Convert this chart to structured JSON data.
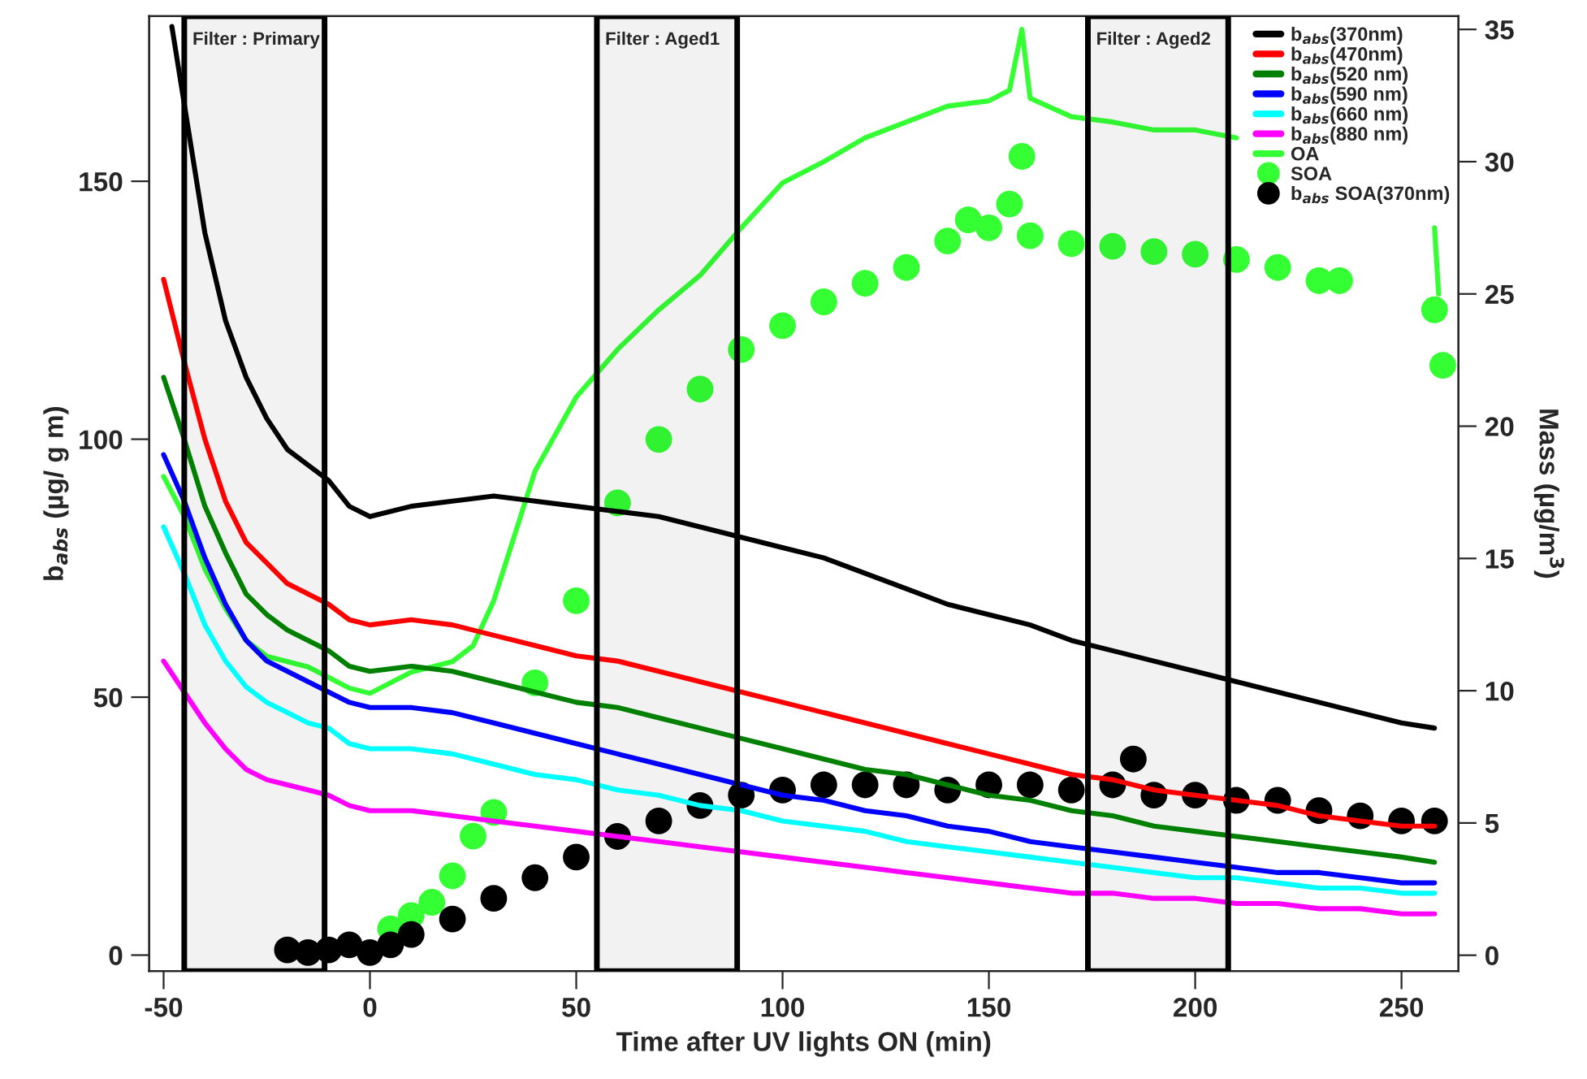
{
  "chart_data": {
    "type": "line",
    "xlabel": "Time after UV lights ON (min)",
    "ylabel": "b$_{abs}$ (µg/ g m)",
    "y2label": "Mass (µg/m$^{3}$)",
    "xlim": [
      -53.5,
      263.8
    ],
    "xticks": [
      -50,
      0,
      50,
      100,
      150,
      200,
      250
    ],
    "ylim": [
      -3.1,
      182
    ],
    "yticks": [
      0,
      50,
      100,
      150
    ],
    "y2lim": [
      -0.6,
      35.5
    ],
    "y2ticks": [
      0,
      5,
      10,
      15,
      20,
      25,
      30,
      35
    ],
    "grid": false,
    "legend": "top right",
    "line_style": "solid",
    "bands": [
      {
        "axis": "x",
        "from": -45,
        "to": -11,
        "label": "Filter : Primary",
        "color": "#000000"
      },
      {
        "axis": "x",
        "from": 55,
        "to": 89,
        "label": "Filter : Aged1",
        "color": "#000000"
      },
      {
        "axis": "x",
        "from": 174,
        "to": 208,
        "label": "Filter : Aged2",
        "color": "#000000"
      }
    ],
    "series": [
      {
        "name": "b$_{abs}$(370nm)",
        "color": "#000000",
        "x": [
          -48,
          -45,
          -40,
          -35,
          -30,
          -25,
          -20,
          -15,
          -10,
          -5,
          0,
          10,
          20,
          30,
          40,
          50,
          60,
          70,
          80,
          90,
          100,
          110,
          120,
          130,
          140,
          150,
          160,
          170,
          180,
          190,
          200,
          210,
          220,
          230,
          240,
          250,
          258
        ],
        "values": [
          180,
          165,
          140,
          123,
          112,
          104,
          98,
          95,
          92,
          87,
          85,
          87,
          88,
          89,
          88,
          87,
          86,
          85,
          83,
          81,
          79,
          77,
          74,
          71,
          68,
          66,
          64,
          61,
          59,
          57,
          55,
          53,
          51,
          49,
          47,
          45,
          44
        ]
      },
      {
        "name": "b$_{abs}$(470nm)",
        "color": "#ff0000",
        "x": [
          -50,
          -45,
          -40,
          -35,
          -30,
          -25,
          -20,
          -15,
          -10,
          -5,
          0,
          10,
          20,
          30,
          40,
          50,
          60,
          70,
          80,
          90,
          100,
          110,
          120,
          130,
          140,
          150,
          160,
          170,
          180,
          190,
          200,
          210,
          220,
          230,
          240,
          250,
          258
        ],
        "values": [
          131,
          115,
          100,
          88,
          80,
          76,
          72,
          70,
          68,
          65,
          64,
          65,
          64,
          62,
          60,
          58,
          57,
          55,
          53,
          51,
          49,
          47,
          45,
          43,
          41,
          39,
          37,
          35,
          34,
          32,
          31,
          30,
          29,
          27,
          26,
          25,
          25
        ]
      },
      {
        "name": "b$_{abs}$(520 nm)",
        "color": "#008000",
        "x": [
          -50,
          -45,
          -40,
          -35,
          -30,
          -25,
          -20,
          -15,
          -10,
          -5,
          0,
          10,
          20,
          30,
          40,
          50,
          60,
          70,
          80,
          90,
          100,
          110,
          120,
          130,
          140,
          150,
          160,
          170,
          180,
          190,
          200,
          210,
          220,
          230,
          240,
          250,
          258
        ],
        "values": [
          112,
          100,
          87,
          78,
          70,
          66,
          63,
          61,
          59,
          56,
          55,
          56,
          55,
          53,
          51,
          49,
          48,
          46,
          44,
          42,
          40,
          38,
          36,
          35,
          33,
          31,
          30,
          28,
          27,
          25,
          24,
          23,
          22,
          21,
          20,
          19,
          18
        ]
      },
      {
        "name": "b$_{abs}$(590 nm)",
        "color": "#0000ff",
        "x": [
          -50,
          -45,
          -40,
          -35,
          -30,
          -25,
          -20,
          -15,
          -10,
          -5,
          0,
          10,
          20,
          30,
          40,
          50,
          60,
          70,
          80,
          90,
          100,
          110,
          120,
          130,
          140,
          150,
          160,
          170,
          180,
          190,
          200,
          210,
          220,
          230,
          240,
          250,
          258
        ],
        "values": [
          97,
          88,
          77,
          68,
          61,
          57,
          55,
          53,
          51,
          49,
          48,
          48,
          47,
          45,
          43,
          41,
          39,
          37,
          35,
          33,
          31,
          30,
          28,
          27,
          25,
          24,
          22,
          21,
          20,
          19,
          18,
          17,
          16,
          16,
          15,
          14,
          14
        ]
      },
      {
        "name": "b$_{abs}$(660 nm)",
        "color": "#00ffff",
        "x": [
          -50,
          -45,
          -40,
          -35,
          -30,
          -25,
          -20,
          -15,
          -10,
          -5,
          0,
          10,
          20,
          30,
          40,
          50,
          60,
          70,
          80,
          90,
          100,
          110,
          120,
          130,
          140,
          150,
          160,
          170,
          180,
          190,
          200,
          210,
          220,
          230,
          240,
          250,
          258
        ],
        "values": [
          83,
          74,
          64,
          57,
          52,
          49,
          47,
          45,
          44,
          41,
          40,
          40,
          39,
          37,
          35,
          34,
          32,
          31,
          29,
          28,
          26,
          25,
          24,
          22,
          21,
          20,
          19,
          18,
          17,
          16,
          15,
          15,
          14,
          13,
          13,
          12,
          12
        ]
      },
      {
        "name": "b$_{abs}$(880 nm)",
        "color": "#ff00ff",
        "x": [
          -50,
          -45,
          -40,
          -35,
          -30,
          -25,
          -20,
          -15,
          -10,
          -5,
          0,
          10,
          20,
          30,
          40,
          50,
          60,
          70,
          80,
          90,
          100,
          110,
          120,
          130,
          140,
          150,
          160,
          170,
          180,
          190,
          200,
          210,
          220,
          230,
          240,
          250,
          258
        ],
        "values": [
          57,
          51,
          45,
          40,
          36,
          34,
          33,
          32,
          31,
          29,
          28,
          28,
          27,
          26,
          25,
          24,
          23,
          22,
          21,
          20,
          19,
          18,
          17,
          16,
          15,
          14,
          13,
          12,
          12,
          11,
          11,
          10,
          10,
          9,
          9,
          8,
          8
        ]
      },
      {
        "name": "OA",
        "axis": "y2",
        "color": "#33ff33",
        "x": [
          -50,
          -45,
          -40,
          -35,
          -30,
          -25,
          -20,
          -15,
          -10,
          -5,
          0,
          10,
          20,
          25,
          30,
          40,
          50,
          60,
          70,
          80,
          90,
          100,
          110,
          120,
          130,
          140,
          150,
          155,
          158,
          160,
          170,
          180,
          190,
          200,
          210,
          220,
          230,
          240,
          250,
          253,
          255,
          258,
          259
        ],
        "values": [
          18.1,
          16.6,
          14.6,
          13.1,
          11.9,
          11.3,
          11.1,
          10.9,
          10.5,
          10.1,
          9.9,
          10.7,
          11.1,
          11.7,
          13.4,
          18.3,
          21.1,
          22.9,
          24.4,
          25.7,
          27.5,
          29.2,
          30.0,
          30.9,
          31.5,
          32.1,
          32.3,
          32.7,
          35.0,
          32.4,
          31.7,
          31.5,
          31.2,
          31.2,
          30.9,
          null,
          null,
          null,
          null,
          null,
          null,
          27.5,
          25.0
        ]
      },
      {
        "name": "SOA",
        "type": "scatter",
        "marker": "circle",
        "axis": "y2",
        "color": "#33ff33",
        "x": [
          5,
          10,
          15,
          20,
          25,
          30,
          40,
          50,
          60,
          70,
          80,
          90,
          100,
          110,
          120,
          130,
          140,
          145,
          150,
          155,
          158,
          160,
          170,
          180,
          190,
          200,
          210,
          220,
          230,
          235,
          258,
          260
        ],
        "values": [
          1.0,
          1.5,
          2.0,
          3.0,
          4.5,
          5.4,
          10.3,
          13.4,
          17.1,
          19.5,
          21.4,
          22.9,
          23.8,
          24.7,
          25.4,
          26.0,
          27.0,
          27.8,
          27.5,
          28.4,
          30.2,
          27.2,
          26.9,
          26.8,
          26.6,
          26.5,
          26.3,
          26.0,
          25.5,
          25.5,
          24.4,
          22.3
        ]
      },
      {
        "name": "b$_{abs}$ SOA(370nm)",
        "type": "scatter",
        "marker": "circle",
        "color": "#000000",
        "x": [
          -20,
          -15,
          -10,
          -5,
          0,
          5,
          10,
          20,
          30,
          40,
          50,
          60,
          70,
          80,
          90,
          100,
          110,
          120,
          130,
          140,
          150,
          160,
          170,
          180,
          185,
          190,
          200,
          210,
          220,
          230,
          240,
          250,
          258
        ],
        "values": [
          1,
          0.5,
          1,
          2,
          0.5,
          2,
          4,
          7,
          11,
          15,
          19,
          23,
          26,
          29,
          31,
          32,
          33,
          33,
          33,
          32,
          33,
          33,
          32,
          33,
          38,
          31,
          31,
          30,
          30,
          28,
          27,
          26,
          26
        ]
      }
    ]
  }
}
